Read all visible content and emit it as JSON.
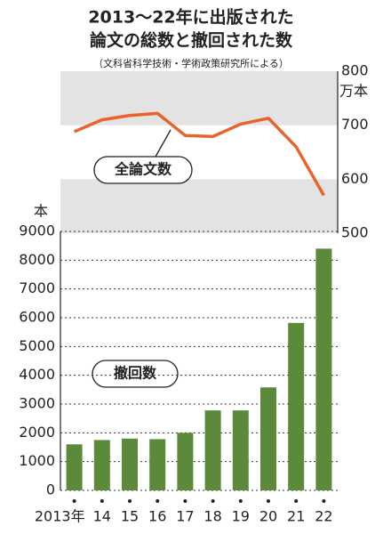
{
  "title": [
    "2013〜22年に出版された",
    "論文の総数と撤回された数"
  ],
  "subtitle": "（文科省科学技術・学術政策研究所による）",
  "chart_data": [
    {
      "type": "line",
      "label": "全論文数",
      "y_unit": "万本",
      "color": "#e8642c",
      "values": [
        688,
        710,
        718,
        722,
        681,
        679,
        702,
        713,
        660,
        570
      ],
      "ylim": [
        500,
        800
      ],
      "yticks": [
        500,
        600,
        700,
        800
      ]
    },
    {
      "type": "bar",
      "label": "撤回数",
      "y_unit": "本",
      "color": "#5b8a3a",
      "categories": [
        "2013年",
        "14",
        "15",
        "16",
        "17",
        "18",
        "19",
        "20",
        "21",
        "22"
      ],
      "values": [
        1600,
        1750,
        1800,
        1780,
        2000,
        2780,
        2780,
        3580,
        5820,
        8400
      ],
      "ylim": [
        0,
        9000
      ],
      "yticks": [
        0,
        1000,
        2000,
        3000,
        4000,
        5000,
        6000,
        7000,
        8000,
        9000
      ],
      "grid": true
    }
  ]
}
